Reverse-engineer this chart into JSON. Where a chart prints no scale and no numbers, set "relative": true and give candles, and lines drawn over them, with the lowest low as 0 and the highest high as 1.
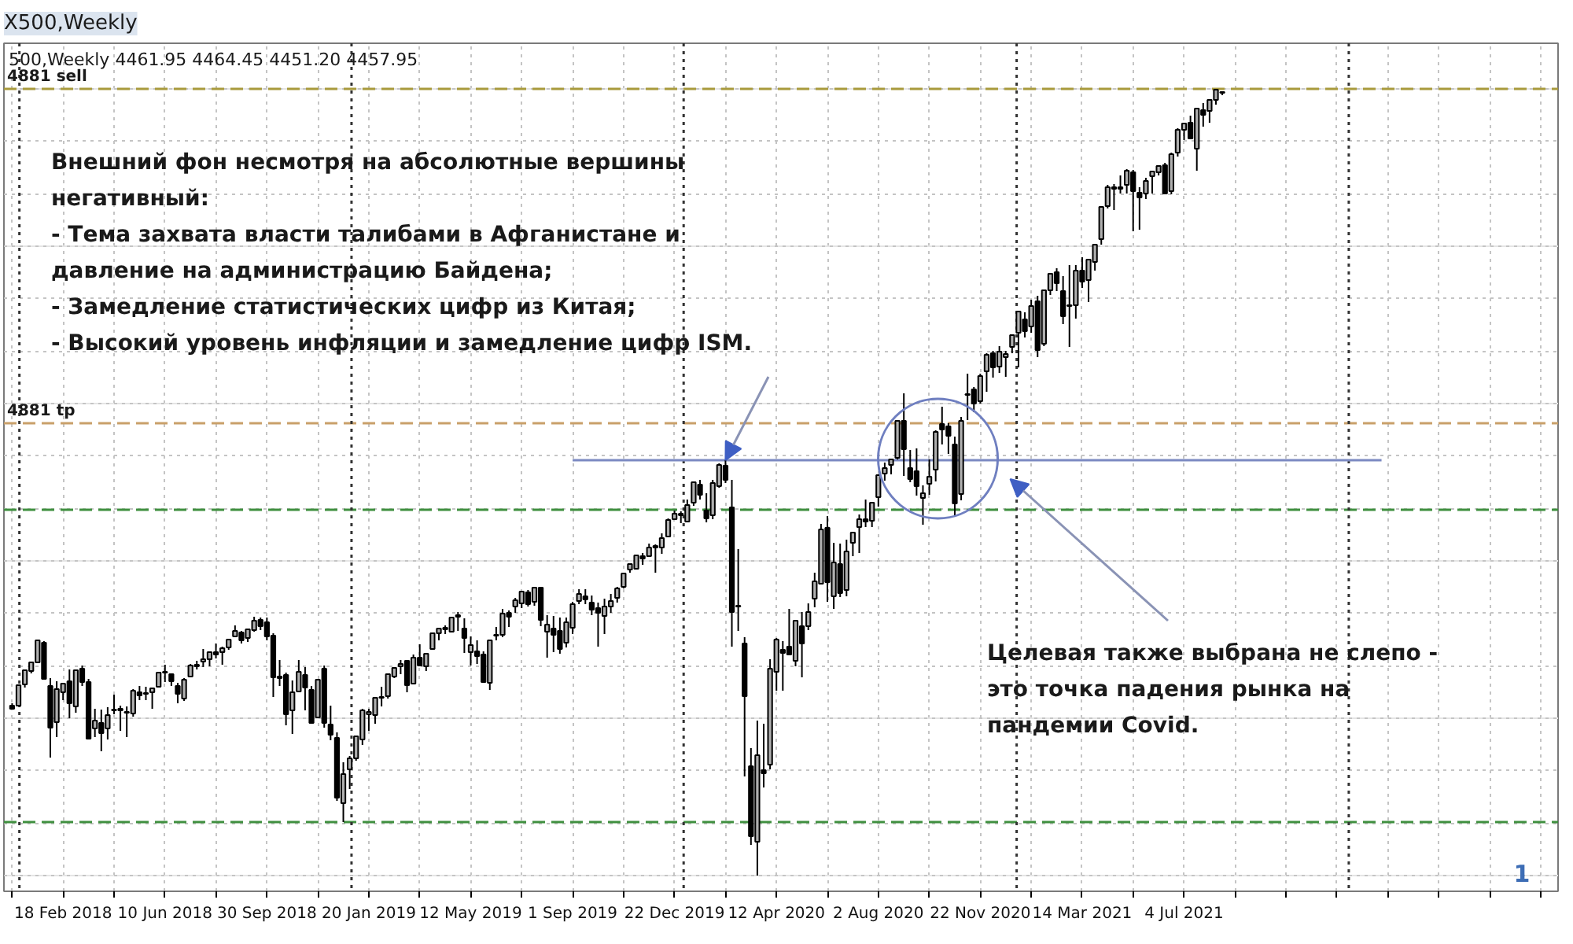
{
  "chart_data": {
    "type": "candlestick",
    "relative": true,
    "title": "X500,Weekly",
    "subtitle": "500,Weekly 4461.95 4464.45 4451.20 4457.95",
    "xlim": [
      "2017-12-15",
      "2022-08-19"
    ],
    "xticks": [
      {
        "value": "2017-12-24",
        "label": null
      },
      {
        "value": "2018-02-18",
        "label": "18 Feb 2018"
      },
      {
        "value": "2018-04-15",
        "label": null
      },
      {
        "value": "2018-06-10",
        "label": "10 Jun 2018"
      },
      {
        "value": "2018-08-05",
        "label": null
      },
      {
        "value": "2018-09-30",
        "label": "30 Sep 2018"
      },
      {
        "value": "2018-11-25",
        "label": null
      },
      {
        "value": "2019-01-20",
        "label": "20 Jan 2019"
      },
      {
        "value": "2019-03-17",
        "label": null
      },
      {
        "value": "2019-05-12",
        "label": "12 May 2019"
      },
      {
        "value": "2019-07-07",
        "label": null
      },
      {
        "value": "2019-09-01",
        "label": "1 Sep 2019"
      },
      {
        "value": "2019-10-27",
        "label": null
      },
      {
        "value": "2019-12-22",
        "label": "22 Dec 2019"
      },
      {
        "value": "2020-02-16",
        "label": null
      },
      {
        "value": "2020-04-12",
        "label": "12 Apr 2020"
      },
      {
        "value": "2020-06-07",
        "label": null
      },
      {
        "value": "2020-08-02",
        "label": "2 Aug 2020"
      },
      {
        "value": "2020-09-27",
        "label": null
      },
      {
        "value": "2020-11-22",
        "label": "22 Nov 2020"
      },
      {
        "value": "2021-01-17",
        "label": null
      },
      {
        "value": "2021-03-14",
        "label": "14 Mar 2021"
      },
      {
        "value": "2021-05-09",
        "label": null
      },
      {
        "value": "2021-07-04",
        "label": "4 Jul 2021"
      },
      {
        "value": "2021-08-29",
        "label": null
      },
      {
        "value": "2021-10-24",
        "label": null
      },
      {
        "value": "2021-12-19",
        "label": null
      },
      {
        "value": "2022-02-13",
        "label": null
      },
      {
        "value": "2022-04-10",
        "label": null
      },
      {
        "value": "2022-06-05",
        "label": null
      },
      {
        "value": "2022-07-31",
        "label": null
      }
    ],
    "grid": true,
    "x": [
      "2017-12-24",
      "2017-12-31",
      "2018-01-07",
      "2018-01-14",
      "2018-01-21",
      "2018-01-28",
      "2018-02-04",
      "2018-02-11",
      "2018-02-18",
      "2018-02-25",
      "2018-03-04",
      "2018-03-11",
      "2018-03-18",
      "2018-03-25",
      "2018-04-01",
      "2018-04-08",
      "2018-04-15",
      "2018-04-22",
      "2018-04-29",
      "2018-05-06",
      "2018-05-13",
      "2018-05-20",
      "2018-05-27",
      "2018-06-03",
      "2018-06-10",
      "2018-06-17",
      "2018-06-24",
      "2018-07-01",
      "2018-07-08",
      "2018-07-15",
      "2018-07-22",
      "2018-07-29",
      "2018-08-05",
      "2018-08-12",
      "2018-08-19",
      "2018-08-26",
      "2018-09-02",
      "2018-09-09",
      "2018-09-16",
      "2018-09-23",
      "2018-09-30",
      "2018-10-07",
      "2018-10-14",
      "2018-10-21",
      "2018-10-28",
      "2018-11-04",
      "2018-11-11",
      "2018-11-18",
      "2018-11-25",
      "2018-12-02",
      "2018-12-09",
      "2018-12-16",
      "2018-12-23",
      "2018-12-30",
      "2019-01-06",
      "2019-01-13",
      "2019-01-20",
      "2019-01-27",
      "2019-02-03",
      "2019-02-10",
      "2019-02-17",
      "2019-02-24",
      "2019-03-03",
      "2019-03-10",
      "2019-03-17",
      "2019-03-24",
      "2019-03-31",
      "2019-04-07",
      "2019-04-14",
      "2019-04-21",
      "2019-04-28",
      "2019-05-05",
      "2019-05-12",
      "2019-05-19",
      "2019-05-26",
      "2019-06-02",
      "2019-06-09",
      "2019-06-16",
      "2019-06-23",
      "2019-06-30",
      "2019-07-07",
      "2019-07-14",
      "2019-07-21",
      "2019-07-28",
      "2019-08-04",
      "2019-08-11",
      "2019-08-18",
      "2019-08-25",
      "2019-09-01",
      "2019-09-08",
      "2019-09-15",
      "2019-09-22",
      "2019-09-29",
      "2019-10-06",
      "2019-10-13",
      "2019-10-20",
      "2019-10-27",
      "2019-11-03",
      "2019-11-10",
      "2019-11-17",
      "2019-11-24",
      "2019-12-01",
      "2019-12-08",
      "2019-12-15",
      "2019-12-22",
      "2019-12-29",
      "2020-01-05",
      "2020-01-12",
      "2020-01-19",
      "2020-01-26",
      "2020-02-02",
      "2020-02-09",
      "2020-02-16",
      "2020-02-23",
      "2020-03-01",
      "2020-03-08",
      "2020-03-15",
      "2020-03-22",
      "2020-03-29",
      "2020-04-05",
      "2020-04-12",
      "2020-04-19",
      "2020-04-26",
      "2020-05-03",
      "2020-05-10",
      "2020-05-17",
      "2020-05-24",
      "2020-05-31",
      "2020-06-07",
      "2020-06-14",
      "2020-06-21",
      "2020-06-28",
      "2020-07-05",
      "2020-07-12",
      "2020-07-19",
      "2020-07-26",
      "2020-08-02",
      "2020-08-09",
      "2020-08-16",
      "2020-08-23",
      "2020-08-30",
      "2020-09-06",
      "2020-09-13",
      "2020-09-20",
      "2020-09-27",
      "2020-10-04",
      "2020-10-11",
      "2020-10-18",
      "2020-10-25",
      "2020-11-01",
      "2020-11-08",
      "2020-11-15",
      "2020-11-22",
      "2020-11-29",
      "2020-12-06",
      "2020-12-13",
      "2020-12-20",
      "2020-12-27",
      "2021-01-03",
      "2021-01-10",
      "2021-01-17",
      "2021-01-24",
      "2021-01-31",
      "2021-02-07",
      "2021-02-14",
      "2021-02-21",
      "2021-02-28",
      "2021-03-07",
      "2021-03-14",
      "2021-03-21",
      "2021-03-28",
      "2021-04-04",
      "2021-04-11",
      "2021-04-18",
      "2021-04-25",
      "2021-05-02",
      "2021-05-09",
      "2021-05-16",
      "2021-05-23",
      "2021-05-30",
      "2021-06-06",
      "2021-06-13",
      "2021-06-20",
      "2021-06-27",
      "2021-07-04",
      "2021-07-11",
      "2021-07-18",
      "2021-07-25",
      "2021-08-01",
      "2021-08-08",
      "2021-08-15"
    ],
    "ohlc": [
      [
        0.216,
        0.219,
        0.211,
        0.212
      ],
      [
        0.216,
        0.242,
        0.215,
        0.242
      ],
      [
        0.243,
        0.261,
        0.239,
        0.261
      ],
      [
        0.26,
        0.271,
        0.257,
        0.271
      ],
      [
        0.271,
        0.299,
        0.27,
        0.299
      ],
      [
        0.296,
        0.298,
        0.249,
        0.25
      ],
      [
        0.241,
        0.251,
        0.15,
        0.188
      ],
      [
        0.195,
        0.247,
        0.176,
        0.237
      ],
      [
        0.233,
        0.244,
        0.223,
        0.244
      ],
      [
        0.247,
        0.262,
        0.2,
        0.219
      ],
      [
        0.215,
        0.261,
        0.207,
        0.261
      ],
      [
        0.263,
        0.267,
        0.241,
        0.246
      ],
      [
        0.246,
        0.25,
        0.173,
        0.174
      ],
      [
        0.187,
        0.212,
        0.176,
        0.197
      ],
      [
        0.194,
        0.211,
        0.158,
        0.181
      ],
      [
        0.187,
        0.214,
        0.173,
        0.204
      ],
      [
        0.21,
        0.23,
        0.205,
        0.211
      ],
      [
        0.212,
        0.216,
        0.184,
        0.21
      ],
      [
        0.208,
        0.215,
        0.176,
        0.207
      ],
      [
        0.206,
        0.237,
        0.202,
        0.235
      ],
      [
        0.233,
        0.241,
        0.223,
        0.229
      ],
      [
        0.231,
        0.24,
        0.223,
        0.232
      ],
      [
        0.233,
        0.239,
        0.212,
        0.238
      ],
      [
        0.24,
        0.258,
        0.239,
        0.258
      ],
      [
        0.258,
        0.268,
        0.246,
        0.259
      ],
      [
        0.256,
        0.256,
        0.241,
        0.247
      ],
      [
        0.241,
        0.245,
        0.219,
        0.231
      ],
      [
        0.225,
        0.251,
        0.222,
        0.249
      ],
      [
        0.253,
        0.269,
        0.252,
        0.267
      ],
      [
        0.266,
        0.273,
        0.262,
        0.268
      ],
      [
        0.272,
        0.288,
        0.265,
        0.275
      ],
      [
        0.275,
        0.285,
        0.266,
        0.284
      ],
      [
        0.284,
        0.295,
        0.276,
        0.281
      ],
      [
        0.284,
        0.291,
        0.268,
        0.289
      ],
      [
        0.29,
        0.3,
        0.287,
        0.3
      ],
      [
        0.304,
        0.318,
        0.304,
        0.311
      ],
      [
        0.309,
        0.311,
        0.295,
        0.299
      ],
      [
        0.302,
        0.313,
        0.297,
        0.313
      ],
      [
        0.312,
        0.329,
        0.31,
        0.324
      ],
      [
        0.325,
        0.328,
        0.312,
        0.317
      ],
      [
        0.322,
        0.328,
        0.299,
        0.304
      ],
      [
        0.305,
        0.308,
        0.227,
        0.252
      ],
      [
        0.251,
        0.274,
        0.241,
        0.253
      ],
      [
        0.255,
        0.258,
        0.191,
        0.205
      ],
      [
        0.21,
        0.248,
        0.18,
        0.233
      ],
      [
        0.234,
        0.274,
        0.233,
        0.259
      ],
      [
        0.255,
        0.265,
        0.21,
        0.239
      ],
      [
        0.236,
        0.241,
        0.193,
        0.194
      ],
      [
        0.201,
        0.249,
        0.201,
        0.249
      ],
      [
        0.263,
        0.267,
        0.188,
        0.194
      ],
      [
        0.192,
        0.216,
        0.172,
        0.179
      ],
      [
        0.175,
        0.182,
        0.095,
        0.099
      ],
      [
        0.092,
        0.144,
        0.068,
        0.129
      ],
      [
        0.135,
        0.152,
        0.11,
        0.149
      ],
      [
        0.149,
        0.178,
        0.146,
        0.177
      ],
      [
        0.173,
        0.212,
        0.166,
        0.21
      ],
      [
        0.205,
        0.212,
        0.184,
        0.208
      ],
      [
        0.204,
        0.227,
        0.193,
        0.226
      ],
      [
        0.226,
        0.24,
        0.215,
        0.227
      ],
      [
        0.228,
        0.256,
        0.225,
        0.256
      ],
      [
        0.253,
        0.264,
        0.251,
        0.264
      ],
      [
        0.266,
        0.274,
        0.256,
        0.269
      ],
      [
        0.273,
        0.274,
        0.233,
        0.242
      ],
      [
        0.244,
        0.281,
        0.243,
        0.277
      ],
      [
        0.277,
        0.294,
        0.267,
        0.267
      ],
      [
        0.266,
        0.283,
        0.26,
        0.282
      ],
      [
        0.288,
        0.308,
        0.288,
        0.308
      ],
      [
        0.308,
        0.315,
        0.299,
        0.314
      ],
      [
        0.315,
        0.318,
        0.307,
        0.313
      ],
      [
        0.31,
        0.328,
        0.31,
        0.328
      ],
      [
        0.329,
        0.335,
        0.311,
        0.331
      ],
      [
        0.314,
        0.327,
        0.283,
        0.302
      ],
      [
        0.284,
        0.304,
        0.267,
        0.293
      ],
      [
        0.285,
        0.299,
        0.269,
        0.279
      ],
      [
        0.281,
        0.285,
        0.245,
        0.246
      ],
      [
        0.245,
        0.3,
        0.236,
        0.299
      ],
      [
        0.305,
        0.316,
        0.299,
        0.306
      ],
      [
        0.306,
        0.339,
        0.303,
        0.333
      ],
      [
        0.334,
        0.337,
        0.316,
        0.329
      ],
      [
        0.342,
        0.353,
        0.334,
        0.35
      ],
      [
        0.346,
        0.362,
        0.34,
        0.361
      ],
      [
        0.36,
        0.363,
        0.342,
        0.345
      ],
      [
        0.348,
        0.367,
        0.343,
        0.366
      ],
      [
        0.366,
        0.367,
        0.317,
        0.325
      ],
      [
        0.31,
        0.331,
        0.277,
        0.319
      ],
      [
        0.314,
        0.33,
        0.284,
        0.306
      ],
      [
        0.311,
        0.328,
        0.282,
        0.288
      ],
      [
        0.296,
        0.328,
        0.29,
        0.322
      ],
      [
        0.315,
        0.348,
        0.307,
        0.345
      ],
      [
        0.349,
        0.364,
        0.345,
        0.358
      ],
      [
        0.355,
        0.364,
        0.345,
        0.351
      ],
      [
        0.347,
        0.356,
        0.331,
        0.338
      ],
      [
        0.34,
        0.347,
        0.291,
        0.334
      ],
      [
        0.33,
        0.352,
        0.307,
        0.342
      ],
      [
        0.342,
        0.358,
        0.334,
        0.349
      ],
      [
        0.353,
        0.367,
        0.347,
        0.365
      ],
      [
        0.367,
        0.384,
        0.365,
        0.384
      ],
      [
        0.389,
        0.397,
        0.385,
        0.396
      ],
      [
        0.39,
        0.408,
        0.389,
        0.407
      ],
      [
        0.406,
        0.41,
        0.395,
        0.403
      ],
      [
        0.406,
        0.422,
        0.405,
        0.417
      ],
      [
        0.417,
        0.421,
        0.385,
        0.419
      ],
      [
        0.417,
        0.435,
        0.409,
        0.429
      ],
      [
        0.431,
        0.454,
        0.431,
        0.452
      ],
      [
        0.453,
        0.464,
        0.453,
        0.46
      ],
      [
        0.46,
        0.463,
        0.448,
        0.458
      ],
      [
        0.45,
        0.478,
        0.449,
        0.471
      ],
      [
        0.474,
        0.5,
        0.47,
        0.5
      ],
      [
        0.497,
        0.503,
        0.478,
        0.484
      ],
      [
        0.464,
        0.486,
        0.449,
        0.454
      ],
      [
        0.458,
        0.503,
        0.453,
        0.499
      ],
      [
        0.495,
        0.524,
        0.493,
        0.522
      ],
      [
        0.521,
        0.528,
        0.499,
        0.503
      ],
      [
        0.468,
        0.503,
        0.291,
        0.335
      ],
      [
        0.343,
        0.415,
        0.311,
        0.342
      ],
      [
        0.295,
        0.303,
        0.126,
        0.228
      ],
      [
        0.139,
        0.162,
        0.039,
        0.05
      ],
      [
        0.043,
        0.197,
        0.0,
        0.153
      ],
      [
        0.134,
        0.193,
        0.112,
        0.13
      ],
      [
        0.141,
        0.275,
        0.135,
        0.263
      ],
      [
        0.259,
        0.302,
        0.235,
        0.3
      ],
      [
        0.287,
        0.298,
        0.235,
        0.283
      ],
      [
        0.291,
        0.339,
        0.28,
        0.281
      ],
      [
        0.273,
        0.324,
        0.266,
        0.324
      ],
      [
        0.317,
        0.335,
        0.252,
        0.295
      ],
      [
        0.317,
        0.346,
        0.312,
        0.335
      ],
      [
        0.352,
        0.385,
        0.341,
        0.374
      ],
      [
        0.371,
        0.447,
        0.371,
        0.44
      ],
      [
        0.442,
        0.457,
        0.348,
        0.373
      ],
      [
        0.355,
        0.423,
        0.339,
        0.398
      ],
      [
        0.396,
        0.422,
        0.354,
        0.359
      ],
      [
        0.363,
        0.427,
        0.355,
        0.412
      ],
      [
        0.423,
        0.437,
        0.406,
        0.436
      ],
      [
        0.443,
        0.459,
        0.41,
        0.453
      ],
      [
        0.453,
        0.478,
        0.443,
        0.45
      ],
      [
        0.451,
        0.474,
        0.443,
        0.474
      ],
      [
        0.481,
        0.509,
        0.469,
        0.509
      ],
      [
        0.511,
        0.525,
        0.502,
        0.518
      ],
      [
        0.522,
        0.53,
        0.51,
        0.529
      ],
      [
        0.531,
        0.578,
        0.529,
        0.578
      ],
      [
        0.578,
        0.613,
        0.508,
        0.542
      ],
      [
        0.518,
        0.541,
        0.5,
        0.504
      ],
      [
        0.514,
        0.543,
        0.483,
        0.495
      ],
      [
        0.48,
        0.496,
        0.446,
        0.486
      ],
      [
        0.498,
        0.529,
        0.484,
        0.507
      ],
      [
        0.516,
        0.566,
        0.501,
        0.564
      ],
      [
        0.574,
        0.596,
        0.548,
        0.567
      ],
      [
        0.571,
        0.575,
        0.536,
        0.559
      ],
      [
        0.548,
        0.558,
        0.457,
        0.473
      ],
      [
        0.485,
        0.583,
        0.477,
        0.578
      ],
      [
        0.611,
        0.638,
        0.579,
        0.612
      ],
      [
        0.618,
        0.621,
        0.589,
        0.6
      ],
      [
        0.603,
        0.638,
        0.6,
        0.635
      ],
      [
        0.641,
        0.664,
        0.615,
        0.662
      ],
      [
        0.664,
        0.667,
        0.633,
        0.646
      ],
      [
        0.647,
        0.673,
        0.639,
        0.666
      ],
      [
        0.659,
        0.667,
        0.634,
        0.663
      ],
      [
        0.672,
        0.688,
        0.664,
        0.687
      ],
      [
        0.69,
        0.718,
        0.646,
        0.717
      ],
      [
        0.707,
        0.716,
        0.684,
        0.692
      ],
      [
        0.698,
        0.732,
        0.69,
        0.724
      ],
      [
        0.73,
        0.737,
        0.659,
        0.668
      ],
      [
        0.676,
        0.744,
        0.673,
        0.744
      ],
      [
        0.744,
        0.766,
        0.738,
        0.765
      ],
      [
        0.767,
        0.772,
        0.743,
        0.753
      ],
      [
        0.743,
        0.762,
        0.701,
        0.711
      ],
      [
        0.725,
        0.776,
        0.672,
        0.724
      ],
      [
        0.725,
        0.776,
        0.708,
        0.769
      ],
      [
        0.769,
        0.786,
        0.747,
        0.755
      ],
      [
        0.757,
        0.784,
        0.729,
        0.783
      ],
      [
        0.78,
        0.802,
        0.769,
        0.802
      ],
      [
        0.809,
        0.851,
        0.802,
        0.85
      ],
      [
        0.851,
        0.878,
        0.848,
        0.875
      ],
      [
        0.875,
        0.879,
        0.846,
        0.873
      ],
      [
        0.875,
        0.89,
        0.867,
        0.873
      ],
      [
        0.878,
        0.898,
        0.867,
        0.896
      ],
      [
        0.894,
        0.897,
        0.819,
        0.87
      ],
      [
        0.868,
        0.875,
        0.821,
        0.862
      ],
      [
        0.867,
        0.887,
        0.86,
        0.883
      ],
      [
        0.889,
        0.896,
        0.867,
        0.895
      ],
      [
        0.894,
        0.903,
        0.89,
        0.902
      ],
      [
        0.903,
        0.906,
        0.866,
        0.867
      ],
      [
        0.87,
        0.919,
        0.866,
        0.917
      ],
      [
        0.919,
        0.95,
        0.914,
        0.948
      ],
      [
        0.948,
        0.957,
        0.935,
        0.956
      ],
      [
        0.957,
        0.966,
        0.937,
        0.937
      ],
      [
        0.924,
        0.976,
        0.896,
        0.975
      ],
      [
        0.973,
        0.982,
        0.952,
        0.967
      ],
      [
        0.972,
        0.987,
        0.957,
        0.986
      ],
      [
        0.986,
        1.0,
        0.98,
        0.999
      ],
      [
        0.996,
        0.997,
        0.992,
        0.995
      ]
    ],
    "series": [
      {
        "type": "line",
        "x": [
          "2019-09-01",
          "2022-02-06"
        ],
        "values": [
          0.528,
          0.528
        ],
        "color": "#7b89c2"
      }
    ],
    "ref_lines": [
      {
        "axis": "y",
        "value": 1.0,
        "label": "4881 sell",
        "color": "#a89a3c",
        "line_style": "dashed"
      },
      {
        "axis": "y",
        "value": 0.575,
        "label": "4881 tp",
        "color": "#c9a06a",
        "line_style": "dashed"
      },
      {
        "axis": "y",
        "value": 0.465,
        "color": "#3f8f3f",
        "line_style": "dashed"
      },
      {
        "axis": "y",
        "value": 0.068,
        "color": "#3f8f3f",
        "line_style": "dashed"
      },
      {
        "axis": "x",
        "value": "2018-01-01",
        "color": "#333333",
        "line_style": "dotted"
      },
      {
        "axis": "x",
        "value": "2019-01-01",
        "color": "#333333",
        "line_style": "dotted"
      },
      {
        "axis": "x",
        "value": "2020-01-01",
        "color": "#333333",
        "line_style": "dotted"
      },
      {
        "axis": "x",
        "value": "2021-01-01",
        "color": "#333333",
        "line_style": "dotted"
      },
      {
        "axis": "x",
        "value": "2022-01-01",
        "color": "#333333",
        "line_style": "dotted"
      }
    ],
    "annotations": [
      {
        "text": "Внешний фон несмотря на абсолютные вершины\nнегативный:\n- Тема захвата власти талибами в Афганистане и\nдавление на администрацию Байдена;\n- Замедление статистических цифр из Китая;\n- Высокий уровень инфляции и замедление цифр ISM.",
        "x": "2020-02-16",
        "y": 0.528
      },
      {
        "text": "Целевая также выбрана не слепо -\nэто точка падения рынка на\nпандемии Covid.",
        "x": "2020-12-25",
        "y": 0.504
      },
      "1"
    ]
  }
}
